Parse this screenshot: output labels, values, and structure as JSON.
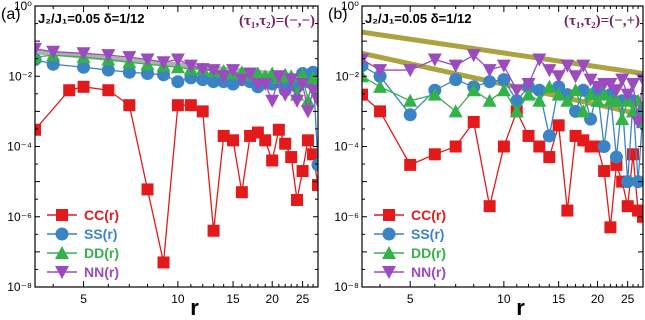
{
  "colors": {
    "CC": "#e31a1c",
    "SS": "#3a83c4",
    "DD": "#33b24a",
    "NN": "#9b4bbf",
    "tau": "#7a1f5e",
    "fit_left": "#a8a8a8",
    "fit_right": "#a39a2c"
  },
  "chart_data": [
    {
      "type": "line",
      "panel_label": "(a)",
      "params": "J₂/J₁=0.05  δ=1/12",
      "tau": "(τ₁,τ₂)=(−,−)",
      "xlabel": "r",
      "ylabel": "",
      "x_scale": "log",
      "y_scale": "log",
      "xlim": [
        3.5,
        28
      ],
      "ylim": [
        1e-08,
        1
      ],
      "x_ticks": [
        5,
        10,
        15,
        20,
        25
      ],
      "x_tick_labels": [
        "5",
        "10",
        "15",
        "20",
        "25"
      ],
      "y_ticks": [
        1e-08,
        1e-06,
        0.0001,
        0.01,
        1
      ],
      "y_tick_labels": [
        "10⁻⁸",
        "10⁻⁶",
        "10⁻⁴",
        "10⁻²",
        "10⁰"
      ],
      "legend_position": "bottom-left",
      "fit_lines": [
        {
          "x": [
            3.5,
            28
          ],
          "y": [
            0.05,
            0.009
          ],
          "color": "fit_left"
        }
      ],
      "series": [
        {
          "name": "CC(r)",
          "color_key": "CC",
          "marker": "square",
          "x": [
            3.5,
            4.5,
            5,
            6,
            7,
            8,
            9,
            10,
            11,
            12,
            13,
            14,
            15,
            16,
            17,
            18,
            19,
            20,
            21,
            22,
            23,
            24,
            25,
            26,
            27,
            28
          ],
          "y": [
            0.0003,
            0.004,
            0.005,
            0.004,
            0.0015,
            6e-06,
            5e-08,
            0.0015,
            0.0015,
            0.001,
            4e-07,
            0.0002,
            0.00015,
            5e-06,
            0.0002,
            0.00025,
            0.00015,
            4e-05,
            0.0003,
            0.00012,
            5e-05,
            3e-06,
            2e-05,
            0.00015,
            6e-05,
            8e-06
          ]
        },
        {
          "name": "SS(r)",
          "color_key": "SS",
          "marker": "circle",
          "x": [
            3.5,
            4,
            5,
            6,
            7,
            8,
            9,
            10,
            11,
            12,
            13,
            14,
            15,
            16,
            17,
            18,
            19,
            20,
            21,
            22,
            23,
            24,
            25,
            26,
            27,
            28
          ],
          "y": [
            0.03,
            0.022,
            0.018,
            0.015,
            0.013,
            0.012,
            0.011,
            0.007,
            0.009,
            0.008,
            0.007,
            0.007,
            0.006,
            0.008,
            0.007,
            0.005,
            0.008,
            0.006,
            0.007,
            0.004,
            0.007,
            0.005,
            0.012,
            0.007,
            0.013,
            3e-05
          ]
        },
        {
          "name": "DD(r)",
          "color_key": "DD",
          "marker": "triangle",
          "x": [
            3.5,
            4,
            5,
            6,
            7,
            8,
            9,
            10,
            11,
            12,
            13,
            14,
            15,
            16,
            17,
            18,
            19,
            20,
            21,
            22,
            23,
            24,
            25,
            26,
            27,
            28
          ],
          "y": [
            0.035,
            0.04,
            0.035,
            0.03,
            0.025,
            0.022,
            0.02,
            0.018,
            0.016,
            0.016,
            0.014,
            0.014,
            0.012,
            0.013,
            0.011,
            0.012,
            0.01,
            0.012,
            0.009,
            0.011,
            0.01,
            0.003,
            0.011,
            0.002,
            0.009,
            0.005
          ]
        },
        {
          "name": "NN(r)",
          "color_key": "NN",
          "marker": "triangle-down",
          "x": [
            3.5,
            4,
            5,
            6,
            7,
            8,
            9,
            10,
            11,
            12,
            13,
            14,
            15,
            16,
            17,
            18,
            19,
            20,
            21,
            22,
            23,
            24,
            25,
            26,
            27,
            28
          ],
          "y": [
            0.06,
            0.05,
            0.045,
            0.04,
            0.035,
            0.03,
            0.025,
            0.03,
            0.02,
            0.016,
            0.015,
            0.01,
            0.015,
            0.008,
            0.012,
            0.006,
            0.006,
            0.002,
            0.01,
            0.003,
            0.008,
            0.002,
            0.006,
            0.001,
            0.004,
            0.002
          ]
        }
      ]
    },
    {
      "type": "line",
      "panel_label": "(b)",
      "params": "J₂/J₁=0.05  δ=1/12",
      "tau": "(τ₁,τ₂)=(−,+)",
      "xlabel": "r",
      "ylabel": "",
      "x_scale": "log",
      "y_scale": "log",
      "xlim": [
        3.5,
        28
      ],
      "ylim": [
        1e-08,
        1
      ],
      "x_ticks": [
        5,
        10,
        15,
        20,
        25
      ],
      "x_tick_labels": [
        "5",
        "10",
        "15",
        "20",
        "25"
      ],
      "y_ticks": [
        1e-08,
        1e-06,
        0.0001,
        0.01,
        1
      ],
      "y_tick_labels": [
        "10⁻⁸",
        "10⁻⁶",
        "10⁻⁴",
        "10⁻²",
        "10⁰"
      ],
      "legend_position": "bottom-left",
      "fit_lines": [
        {
          "x": [
            3.5,
            28
          ],
          "y": [
            0.18,
            0.012
          ],
          "color": "fit_right"
        },
        {
          "x": [
            3.5,
            28
          ],
          "y": [
            0.045,
            0.0008
          ],
          "color": "fit_right"
        }
      ],
      "series": [
        {
          "name": "CC(r)",
          "color_key": "CC",
          "marker": "square",
          "x": [
            3.5,
            4,
            5,
            6,
            7,
            8,
            9,
            10,
            11,
            12,
            13,
            14,
            15,
            16,
            17,
            18,
            19,
            20,
            21,
            22,
            23,
            24,
            25,
            26,
            27,
            28
          ],
          "y": [
            0.003,
            0.001,
            3e-05,
            6e-05,
            0.0001,
            0.0005,
            2e-06,
            0.0001,
            0.001,
            0.0002,
            0.0001,
            5e-05,
            0.0004,
            1.5e-06,
            0.0002,
            0.00015,
            0.0001,
            0.0001,
            2e-05,
            5e-07,
            3e-05,
            1e-05,
            2e-06,
            6e-05,
            1.5e-06,
            1e-06
          ]
        },
        {
          "name": "SS(r)",
          "color_key": "SS",
          "marker": "circle",
          "x": [
            3.5,
            4,
            5,
            6,
            7,
            8,
            9,
            10,
            11,
            12,
            13,
            14,
            15,
            16,
            17,
            18,
            19,
            20,
            21,
            22,
            23,
            24,
            25,
            26,
            27,
            28
          ],
          "y": [
            0.02,
            0.01,
            0.0008,
            0.004,
            0.008,
            0.005,
            0.007,
            0.008,
            0.002,
            0.005,
            0.004,
            0.0002,
            0.005,
            0.003,
            0.001,
            0.004,
            0.0006,
            0.004,
            0.0001,
            0.003,
            5e-05,
            0.002,
            1e-05,
            0.002,
            1e-05,
            0.001
          ]
        },
        {
          "name": "DD(r)",
          "color_key": "DD",
          "marker": "triangle",
          "x": [
            3.5,
            4,
            5,
            6,
            7,
            8,
            9,
            10,
            11,
            12,
            13,
            14,
            15,
            16,
            17,
            18,
            19,
            20,
            21,
            22,
            23,
            24,
            25,
            26,
            27,
            28
          ],
          "y": [
            0.01,
            0.005,
            0.002,
            0.003,
            0.001,
            0.004,
            0.002,
            0.004,
            0.001,
            0.003,
            0.002,
            0.005,
            0.003,
            0.002,
            0.004,
            0.001,
            0.003,
            0.002,
            0.003,
            0.002,
            0.002,
            0.0006,
            0.002,
            0.001,
            0.002,
            0.0005
          ]
        },
        {
          "name": "NN(r)",
          "color_key": "NN",
          "marker": "triangle-down",
          "x": [
            3.5,
            4,
            5,
            6,
            7,
            8,
            9,
            10,
            11,
            12,
            13,
            14,
            15,
            16,
            17,
            18,
            19,
            20,
            21,
            22,
            23,
            24,
            25,
            26,
            27,
            28
          ],
          "y": [
            0.03,
            0.015,
            0.015,
            0.03,
            0.02,
            0.04,
            0.015,
            0.02,
            0.004,
            0.006,
            0.03,
            0.015,
            0.01,
            0.02,
            0.01,
            0.02,
            0.008,
            0.005,
            0.006,
            0.006,
            0.004,
            0.008,
            0.003,
            0.006,
            0.0005,
            0.008
          ]
        }
      ]
    }
  ]
}
